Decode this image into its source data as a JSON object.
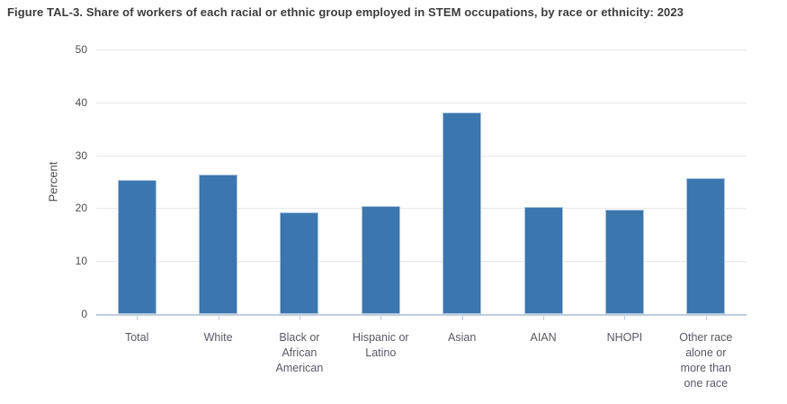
{
  "chart_data": {
    "type": "bar",
    "title": "Figure TAL-3. Share of workers of each racial or ethnic group employed in STEM occupations, by race or ethnicity: 2023",
    "xlabel": "",
    "ylabel": "Percent",
    "categories": [
      "Total",
      "White",
      "Black or African American",
      "Hispanic or Latino",
      "Asian",
      "AIAN",
      "NHOPI",
      "Other race alone or more than one race"
    ],
    "category_label_lines": [
      [
        "Total"
      ],
      [
        "White"
      ],
      [
        "Black or",
        "African",
        "American"
      ],
      [
        "Hispanic or",
        "Latino"
      ],
      [
        "Asian"
      ],
      [
        "AIAN"
      ],
      [
        "NHOPI"
      ],
      [
        "Other race",
        "alone or",
        "more than",
        "one race"
      ]
    ],
    "values": [
      25.3,
      26.3,
      19.3,
      20.5,
      38.1,
      20.3,
      19.7,
      25.7
    ],
    "ylim": [
      0,
      50
    ],
    "yticks": [
      0,
      10,
      20,
      30,
      40,
      50
    ],
    "grid": true,
    "legend_position": "none",
    "colors": {
      "bar_fill": "#3B76AE",
      "bar_border": "#A9C3DF",
      "gridline": "#E8E8E8",
      "axis_line": "#BFCCDE",
      "tick_label": "#4D4D4D",
      "category_label": "#595A62",
      "title_text": "#3C3C3C"
    }
  }
}
